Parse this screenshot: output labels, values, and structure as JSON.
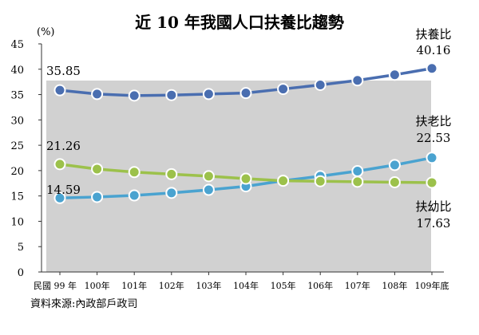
{
  "chart_data": {
    "type": "line",
    "title": "近 10 年我國人口扶養比趨勢",
    "yunit": "(%)",
    "ylim": [
      0,
      45
    ],
    "yticks": [
      0,
      5,
      10,
      15,
      20,
      25,
      30,
      35,
      40,
      45
    ],
    "categories": [
      "民國 99 年",
      "100年",
      "101年",
      "102年",
      "103年",
      "104年",
      "105年",
      "106年",
      "107年",
      "108年",
      "109年底"
    ],
    "series": [
      {
        "name": "扶養比",
        "color": "#4a6eb0",
        "values": [
          35.85,
          35.1,
          34.8,
          34.9,
          35.1,
          35.3,
          36.1,
          36.9,
          37.8,
          38.9,
          40.16
        ],
        "start_label": "35.85",
        "end_label": "40.16"
      },
      {
        "name": "扶老比",
        "color": "#4aa3d0",
        "values": [
          14.59,
          14.8,
          15.1,
          15.6,
          16.2,
          16.9,
          18.0,
          18.9,
          19.9,
          21.1,
          22.53
        ],
        "start_label": "14.59",
        "end_label": "22.53"
      },
      {
        "name": "扶幼比",
        "color": "#9cc14b",
        "values": [
          21.26,
          20.3,
          19.7,
          19.3,
          18.9,
          18.4,
          18.0,
          17.9,
          17.8,
          17.7,
          17.63
        ],
        "start_label": "21.26",
        "end_label": "17.63"
      }
    ],
    "source": "資料來源:內政部戶政司"
  }
}
